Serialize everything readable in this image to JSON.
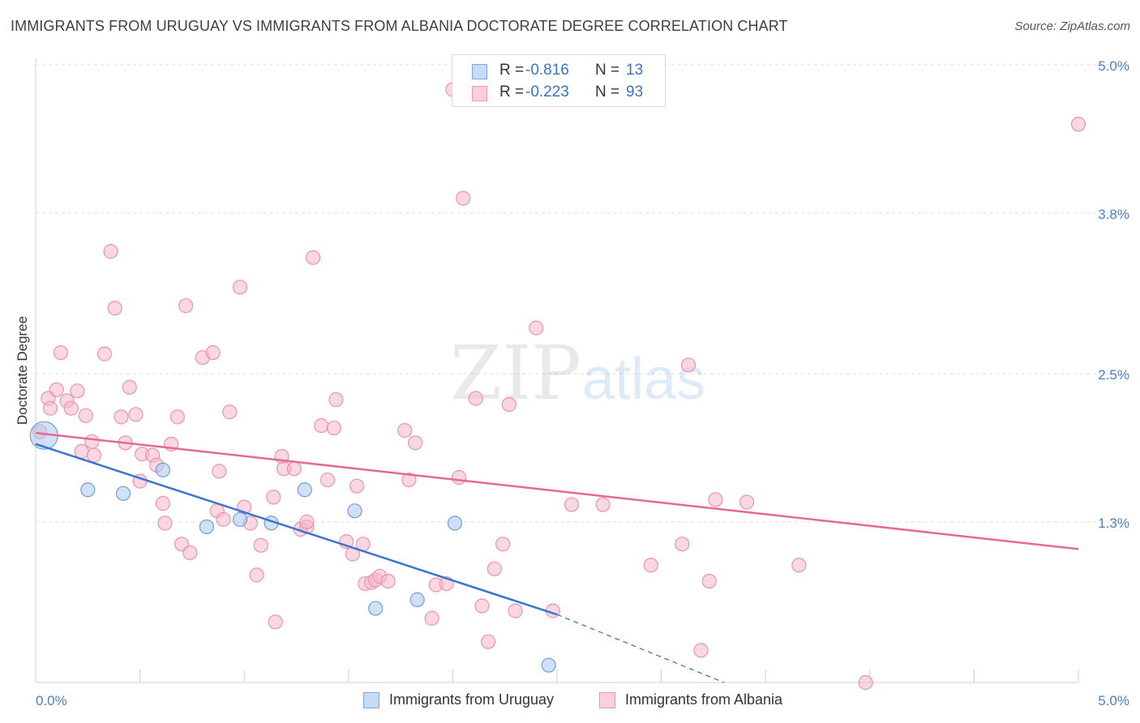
{
  "title": "IMMIGRANTS FROM URUGUAY VS IMMIGRANTS FROM ALBANIA DOCTORATE DEGREE CORRELATION CHART",
  "source": "Source: ZipAtlas.com",
  "watermark": {
    "zip": "ZIP",
    "atlas": "atlas"
  },
  "legend_top": {
    "rows": [
      {
        "r_label": "R =",
        "r_value": "-0.816",
        "n_label": "N =",
        "n_value": "13",
        "color": "#a9c8f0"
      },
      {
        "r_label": "R =",
        "r_value": "-0.223",
        "n_label": "N =",
        "n_value": "93",
        "color": "#f7b6c8"
      }
    ]
  },
  "legend_bottom": {
    "items": [
      {
        "label": "Immigrants from Uruguay",
        "color": "#a9c8f0"
      },
      {
        "label": "Immigrants from Albania",
        "color": "#f7b6c8"
      }
    ]
  },
  "chart_data": {
    "type": "scatter",
    "xlabel": "",
    "ylabel": "Doctorate Degree",
    "xlim": [
      0,
      5.0
    ],
    "ylim": [
      0,
      5.0
    ],
    "x_tick_labels": [
      "0.0%",
      "5.0%"
    ],
    "y_ticks": [
      1.3,
      2.5,
      3.8,
      5.0
    ],
    "y_tick_labels": [
      "1.3%",
      "2.5%",
      "3.8%",
      "5.0%"
    ],
    "grid": true,
    "series": [
      {
        "name": "Immigrants from Uruguay",
        "color": "#a9c8f0",
        "stroke": "#6f9fd8",
        "trend_color": "#3a75d0",
        "points": [
          [
            0.04,
            2.0,
            "large"
          ],
          [
            0.25,
            1.56
          ],
          [
            0.42,
            1.53
          ],
          [
            0.61,
            1.72
          ],
          [
            0.82,
            1.26
          ],
          [
            0.98,
            1.32
          ],
          [
            1.13,
            1.29
          ],
          [
            1.29,
            1.56
          ],
          [
            1.53,
            1.39
          ],
          [
            1.63,
            0.6
          ],
          [
            1.83,
            0.67
          ],
          [
            2.01,
            1.29
          ],
          [
            2.46,
            0.14
          ]
        ],
        "trend": {
          "x0": 0.0,
          "y0": 1.93,
          "x1": 2.5,
          "y1": 0.55,
          "dash_x1": 3.3,
          "dash_y1": 0.0
        }
      },
      {
        "name": "Immigrants from Albania",
        "color": "#f7b6c8",
        "stroke": "#ea94ad",
        "trend_color": "#e36a95",
        "points": [
          [
            0.02,
            2.03
          ],
          [
            0.06,
            2.3
          ],
          [
            0.07,
            2.22
          ],
          [
            0.1,
            2.37
          ],
          [
            0.12,
            2.67
          ],
          [
            0.15,
            2.28
          ],
          [
            0.17,
            2.22
          ],
          [
            0.2,
            2.36
          ],
          [
            0.24,
            2.16
          ],
          [
            0.27,
            1.95
          ],
          [
            0.22,
            1.87
          ],
          [
            0.28,
            1.84
          ],
          [
            0.33,
            2.66
          ],
          [
            0.36,
            3.49
          ],
          [
            0.38,
            3.03
          ],
          [
            0.41,
            2.15
          ],
          [
            0.43,
            1.94
          ],
          [
            0.45,
            2.39
          ],
          [
            0.48,
            2.17
          ],
          [
            0.51,
            1.85
          ],
          [
            0.5,
            1.63
          ],
          [
            0.56,
            1.84
          ],
          [
            0.58,
            1.76
          ],
          [
            0.61,
            1.45
          ],
          [
            0.62,
            1.29
          ],
          [
            0.65,
            1.93
          ],
          [
            0.68,
            2.15
          ],
          [
            0.7,
            1.12
          ],
          [
            0.72,
            3.05
          ],
          [
            0.74,
            1.05
          ],
          [
            0.8,
            2.63
          ],
          [
            0.85,
            2.67
          ],
          [
            0.87,
            1.39
          ],
          [
            0.88,
            1.71
          ],
          [
            0.9,
            1.32
          ],
          [
            0.93,
            2.19
          ],
          [
            0.98,
            3.2
          ],
          [
            1.0,
            1.42
          ],
          [
            1.03,
            1.29
          ],
          [
            1.06,
            0.87
          ],
          [
            1.08,
            1.11
          ],
          [
            1.14,
            1.5
          ],
          [
            1.15,
            0.49
          ],
          [
            1.18,
            1.83
          ],
          [
            1.19,
            1.73
          ],
          [
            1.24,
            1.73
          ],
          [
            1.27,
            1.24
          ],
          [
            1.3,
            1.26
          ],
          [
            1.33,
            3.44
          ],
          [
            1.37,
            2.08
          ],
          [
            1.4,
            1.64
          ],
          [
            1.43,
            2.06
          ],
          [
            1.44,
            2.29
          ],
          [
            1.49,
            1.14
          ],
          [
            1.52,
            1.04
          ],
          [
            1.54,
            1.59
          ],
          [
            1.57,
            1.12
          ],
          [
            1.58,
            0.8
          ],
          [
            1.61,
            0.81
          ],
          [
            1.63,
            0.83
          ],
          [
            1.65,
            0.86
          ],
          [
            1.69,
            0.82
          ],
          [
            1.77,
            2.04
          ],
          [
            1.79,
            1.64
          ],
          [
            1.82,
            1.94
          ],
          [
            1.9,
            0.52
          ],
          [
            1.92,
            0.79
          ],
          [
            1.97,
            0.8
          ],
          [
            2.0,
            4.8
          ],
          [
            2.03,
            1.66
          ],
          [
            2.05,
            3.92
          ],
          [
            2.11,
            2.3
          ],
          [
            2.14,
            0.62
          ],
          [
            2.17,
            0.33
          ],
          [
            2.2,
            0.92
          ],
          [
            2.24,
            1.12
          ],
          [
            2.27,
            2.25
          ],
          [
            2.3,
            0.58
          ],
          [
            2.4,
            2.87
          ],
          [
            2.48,
            0.58
          ],
          [
            2.72,
            1.44
          ],
          [
            2.95,
            0.95
          ],
          [
            3.1,
            1.12
          ],
          [
            3.13,
            2.57
          ],
          [
            3.19,
            0.26
          ],
          [
            3.23,
            0.82
          ],
          [
            3.26,
            1.48
          ],
          [
            3.41,
            1.46
          ],
          [
            3.66,
            0.95
          ],
          [
            3.98,
            0.0
          ],
          [
            5.0,
            4.52
          ],
          [
            2.57,
            1.44
          ],
          [
            1.3,
            1.3
          ]
        ],
        "trend": {
          "x0": 0.0,
          "y0": 2.02,
          "x1": 5.0,
          "y1": 1.08
        }
      }
    ]
  }
}
